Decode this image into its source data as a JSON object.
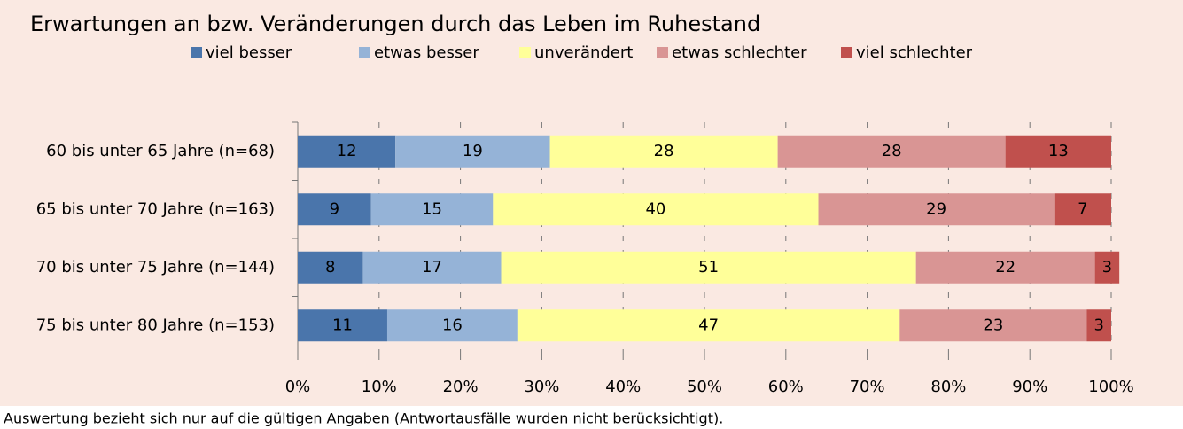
{
  "chart_data": {
    "type": "stacked-barh",
    "title": "Erwartungen an bzw. Veränderungen durch das Leben im Ruhestand",
    "categories": [
      "60 bis unter 65 Jahre (n=68)",
      "65 bis unter 70 Jahre (n=163)",
      "70 bis unter 75 Jahre (n=144)",
      "75 bis unter 80 Jahre (n=153)"
    ],
    "series": [
      {
        "name": "viel besser",
        "color": "#4a75ab",
        "values": [
          12,
          9,
          8,
          11
        ]
      },
      {
        "name": "etwas besser",
        "color": "#95b3d7",
        "values": [
          19,
          15,
          17,
          16
        ]
      },
      {
        "name": "unverändert",
        "color": "#ffff99",
        "values": [
          28,
          40,
          51,
          47
        ]
      },
      {
        "name": "etwas schlechter",
        "color": "#d99594",
        "values": [
          28,
          29,
          22,
          23
        ]
      },
      {
        "name": "viel schlechter",
        "color": "#c0504d",
        "values": [
          13,
          7,
          3,
          3
        ]
      }
    ],
    "xlim": [
      0,
      100
    ],
    "xticks": [
      {
        "value": 0,
        "label": "0%"
      },
      {
        "value": 10,
        "label": "10%"
      },
      {
        "value": 20,
        "label": "20%"
      },
      {
        "value": 30,
        "label": "30%"
      },
      {
        "value": 40,
        "label": "40%"
      },
      {
        "value": 50,
        "label": "50%"
      },
      {
        "value": 60,
        "label": "60%"
      },
      {
        "value": 70,
        "label": "70%"
      },
      {
        "value": 80,
        "label": "80%"
      },
      {
        "value": 90,
        "label": "90%"
      },
      {
        "value": 100,
        "label": "100%"
      }
    ],
    "grid": true,
    "legend": "top",
    "note": "Auswertung bezieht sich nur auf die gültigen Angaben (Antwortausfälle wurden nicht berücksichtigt)."
  }
}
